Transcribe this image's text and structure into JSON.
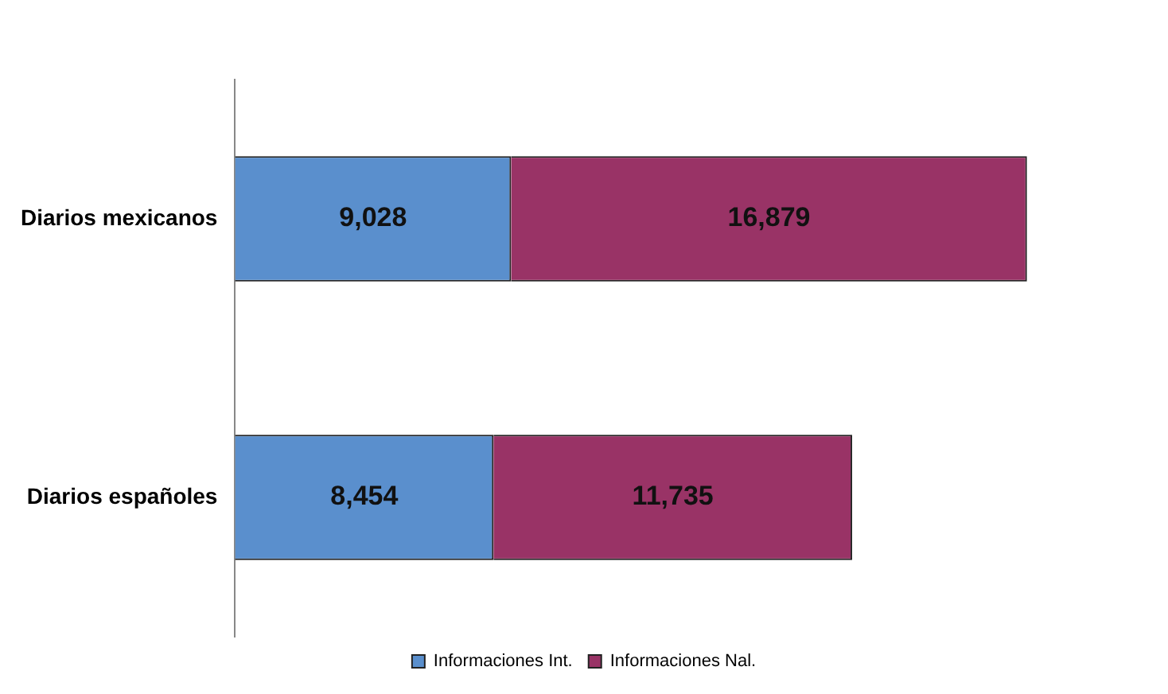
{
  "chart_data": {
    "type": "bar",
    "orientation": "horizontal",
    "stacked": true,
    "categories": [
      "Diarios mexicanos",
      "Diarios españoles"
    ],
    "series": [
      {
        "name": "Informaciones Int.",
        "color": "#5a8fcd",
        "values": [
          9028,
          8454
        ],
        "value_labels": [
          "9,028",
          "8,454"
        ]
      },
      {
        "name": "Informaciones Nal.",
        "color": "#993366",
        "values": [
          16879,
          11735
        ],
        "value_labels": [
          "16,879",
          "11,735"
        ]
      }
    ],
    "legend": "bottom",
    "grid": false
  }
}
